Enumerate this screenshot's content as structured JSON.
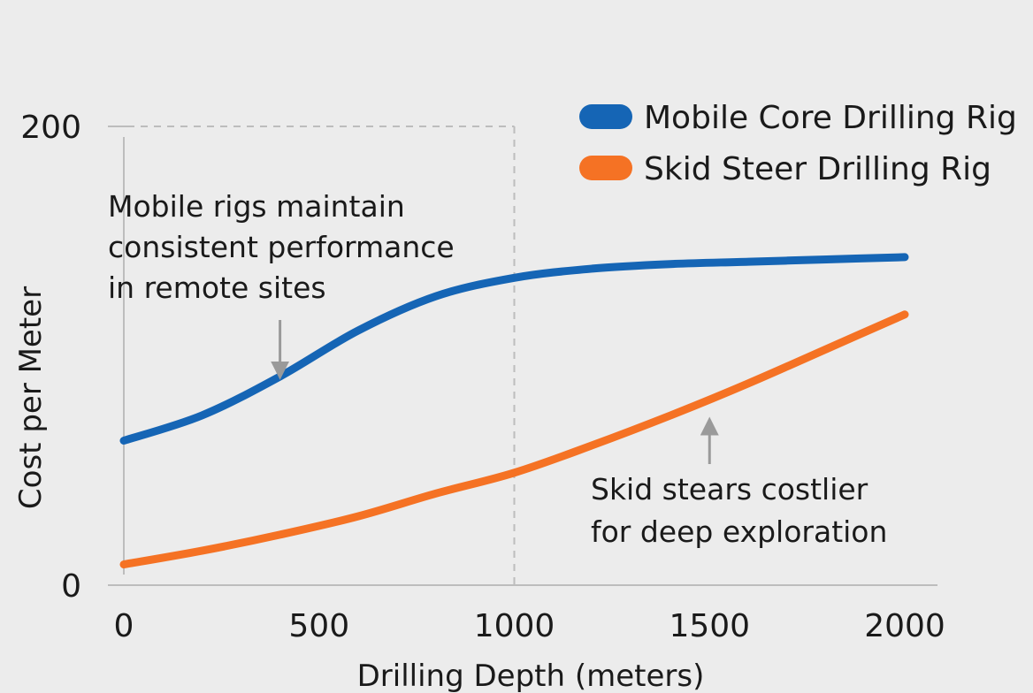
{
  "chart_data": {
    "type": "line",
    "xlabel": "Drilling Depth (meters)",
    "ylabel": "Cost per Meter",
    "xlim": [
      0,
      2000
    ],
    "ylim": [
      0,
      200
    ],
    "x_ticks": [
      "0",
      "500",
      "1000",
      "1500",
      "2000"
    ],
    "y_ticks": [
      "0",
      "200"
    ],
    "grid": false,
    "legend_position": "top-right",
    "series": [
      {
        "name": "Mobile Core Drilling Rig",
        "color": "#1565b5",
        "x": [
          0,
          200,
          400,
          600,
          800,
          1000,
          1200,
          1400,
          1600,
          1800,
          2000
        ],
        "values": [
          63,
          74,
          91,
          111,
          126,
          134,
          138,
          140,
          141,
          142,
          143
        ]
      },
      {
        "name": "Skid Steer Drilling Rig",
        "color": "#f57224",
        "x": [
          0,
          200,
          400,
          600,
          800,
          1000,
          1200,
          1400,
          1600,
          1800,
          2000
        ],
        "values": [
          9,
          15,
          22,
          30,
          40,
          49,
          61,
          74,
          88,
          103,
          118
        ]
      }
    ],
    "reference_line": {
      "x": 1000
    },
    "annotations": [
      {
        "lines": [
          "Mobile rigs maintain",
          "consistent performance",
          "in remote sites"
        ],
        "arrow_x": 400,
        "arrow_y": 92
      },
      {
        "lines": [
          "Skid stears costlier",
          "for deep exploration"
        ],
        "arrow_x": 1500,
        "arrow_y": 74
      }
    ]
  }
}
